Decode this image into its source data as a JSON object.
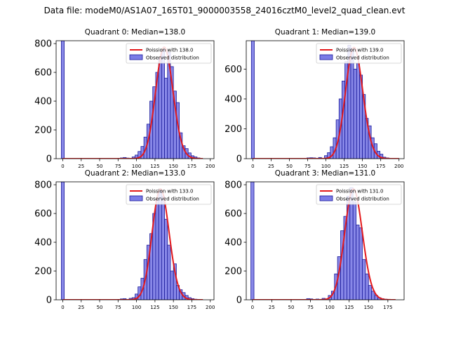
{
  "figure": {
    "suptitle": "Data file: modeM0/AS1A07_165T01_9000003558_24016cztM0_level2_quad_clean.evt"
  },
  "colors": {
    "bar_fill": "#7b7be6",
    "bar_edge": "#1a1a9a",
    "poisson_line": "#e41a1c",
    "axes": "#000000"
  },
  "chart_data": [
    {
      "type": "bar",
      "title": "Quadrant 0: Median=138.0",
      "xlim": [
        -9,
        205
      ],
      "ylim": [
        0,
        820
      ],
      "xticks": [
        0,
        25,
        50,
        75,
        100,
        125,
        150,
        175,
        200
      ],
      "yticks": [
        0,
        200,
        400,
        600,
        800
      ],
      "bin_width": 4,
      "bins": [
        {
          "x": 0,
          "v": 820
        },
        {
          "x": 80,
          "v": 5
        },
        {
          "x": 84,
          "v": 8
        },
        {
          "x": 88,
          "v": 4
        },
        {
          "x": 96,
          "v": 12
        },
        {
          "x": 100,
          "v": 25
        },
        {
          "x": 104,
          "v": 50
        },
        {
          "x": 108,
          "v": 85
        },
        {
          "x": 112,
          "v": 150
        },
        {
          "x": 116,
          "v": 240
        },
        {
          "x": 120,
          "v": 400
        },
        {
          "x": 124,
          "v": 500
        },
        {
          "x": 128,
          "v": 600
        },
        {
          "x": 132,
          "v": 700
        },
        {
          "x": 136,
          "v": 760
        },
        {
          "x": 140,
          "v": 560
        },
        {
          "x": 144,
          "v": 740
        },
        {
          "x": 148,
          "v": 640
        },
        {
          "x": 152,
          "v": 470
        },
        {
          "x": 156,
          "v": 390
        },
        {
          "x": 160,
          "v": 180
        },
        {
          "x": 164,
          "v": 90
        },
        {
          "x": 168,
          "v": 70
        },
        {
          "x": 172,
          "v": 40
        },
        {
          "x": 176,
          "v": 20
        },
        {
          "x": 180,
          "v": 12
        },
        {
          "x": 184,
          "v": 5
        }
      ],
      "poisson_mean": 138.0,
      "poisson_scale": 775,
      "poisson_range": [
        0,
        190
      ],
      "legend": {
        "poisson": "Poission with 138.0",
        "observed": "Observed distribution",
        "loc": "upper right"
      }
    },
    {
      "type": "bar",
      "title": "Quadrant 1: Median=139.0",
      "xlim": [
        -9,
        207
      ],
      "ylim": [
        0,
        790
      ],
      "xticks": [
        0,
        25,
        50,
        75,
        100,
        125,
        150,
        175,
        200
      ],
      "yticks": [
        0,
        200,
        400,
        600
      ],
      "bin_width": 4,
      "bins": [
        {
          "x": 0,
          "v": 790
        },
        {
          "x": 76,
          "v": 5
        },
        {
          "x": 80,
          "v": 6
        },
        {
          "x": 84,
          "v": 5
        },
        {
          "x": 92,
          "v": 8
        },
        {
          "x": 100,
          "v": 20
        },
        {
          "x": 104,
          "v": 40
        },
        {
          "x": 108,
          "v": 80
        },
        {
          "x": 112,
          "v": 140
        },
        {
          "x": 116,
          "v": 260
        },
        {
          "x": 120,
          "v": 400
        },
        {
          "x": 124,
          "v": 520
        },
        {
          "x": 128,
          "v": 650
        },
        {
          "x": 132,
          "v": 760
        },
        {
          "x": 136,
          "v": 740
        },
        {
          "x": 140,
          "v": 600
        },
        {
          "x": 144,
          "v": 640
        },
        {
          "x": 148,
          "v": 560
        },
        {
          "x": 152,
          "v": 430
        },
        {
          "x": 156,
          "v": 270
        },
        {
          "x": 160,
          "v": 220
        },
        {
          "x": 164,
          "v": 140
        },
        {
          "x": 168,
          "v": 100
        },
        {
          "x": 172,
          "v": 50
        },
        {
          "x": 176,
          "v": 30
        },
        {
          "x": 180,
          "v": 10
        },
        {
          "x": 184,
          "v": 5
        }
      ],
      "poisson_mean": 139.0,
      "poisson_scale": 745,
      "poisson_range": [
        0,
        200
      ],
      "legend": {
        "poisson": "Poission with 139.0",
        "observed": "Observed distribution",
        "loc": "upper right"
      }
    },
    {
      "type": "bar",
      "title": "Quadrant 2: Median=133.0",
      "xlim": [
        -9,
        205
      ],
      "ylim": [
        0,
        820
      ],
      "xticks": [
        0,
        25,
        50,
        75,
        100,
        125,
        150,
        175,
        200
      ],
      "yticks": [
        0,
        200,
        400,
        600,
        800
      ],
      "bin_width": 4,
      "bins": [
        {
          "x": 0,
          "v": 820
        },
        {
          "x": 80,
          "v": 6
        },
        {
          "x": 84,
          "v": 8
        },
        {
          "x": 92,
          "v": 10
        },
        {
          "x": 96,
          "v": 15
        },
        {
          "x": 100,
          "v": 40
        },
        {
          "x": 104,
          "v": 90
        },
        {
          "x": 108,
          "v": 150
        },
        {
          "x": 112,
          "v": 280
        },
        {
          "x": 116,
          "v": 380
        },
        {
          "x": 120,
          "v": 460
        },
        {
          "x": 124,
          "v": 600
        },
        {
          "x": 128,
          "v": 700
        },
        {
          "x": 132,
          "v": 760
        },
        {
          "x": 136,
          "v": 720
        },
        {
          "x": 140,
          "v": 560
        },
        {
          "x": 144,
          "v": 380
        },
        {
          "x": 148,
          "v": 200
        },
        {
          "x": 152,
          "v": 250
        },
        {
          "x": 156,
          "v": 100
        },
        {
          "x": 160,
          "v": 70
        },
        {
          "x": 164,
          "v": 50
        },
        {
          "x": 168,
          "v": 30
        },
        {
          "x": 172,
          "v": 15
        },
        {
          "x": 176,
          "v": 8
        },
        {
          "x": 180,
          "v": 4
        },
        {
          "x": 184,
          "v": 3
        }
      ],
      "poisson_mean": 133.0,
      "poisson_scale": 770,
      "poisson_range": [
        0,
        190
      ],
      "legend": {
        "poisson": "Poission with 133.0",
        "observed": "Observed distribution",
        "loc": "upper right"
      }
    },
    {
      "type": "bar",
      "title": "Quadrant 3: Median=131.0",
      "xlim": [
        -8,
        196
      ],
      "ylim": [
        0,
        820
      ],
      "xticks": [
        0,
        25,
        50,
        75,
        100,
        125,
        150,
        175
      ],
      "yticks": [
        0,
        200,
        400,
        600,
        800
      ],
      "bin_width": 4,
      "bins": [
        {
          "x": 0,
          "v": 820
        },
        {
          "x": 72,
          "v": 8
        },
        {
          "x": 76,
          "v": 6
        },
        {
          "x": 84,
          "v": 5
        },
        {
          "x": 92,
          "v": 10
        },
        {
          "x": 100,
          "v": 30
        },
        {
          "x": 104,
          "v": 60
        },
        {
          "x": 108,
          "v": 180
        },
        {
          "x": 112,
          "v": 300
        },
        {
          "x": 116,
          "v": 480
        },
        {
          "x": 120,
          "v": 580
        },
        {
          "x": 124,
          "v": 720
        },
        {
          "x": 128,
          "v": 780
        },
        {
          "x": 132,
          "v": 680
        },
        {
          "x": 136,
          "v": 520
        },
        {
          "x": 140,
          "v": 500
        },
        {
          "x": 144,
          "v": 280
        },
        {
          "x": 148,
          "v": 180
        },
        {
          "x": 152,
          "v": 100
        },
        {
          "x": 156,
          "v": 60
        },
        {
          "x": 160,
          "v": 30
        },
        {
          "x": 164,
          "v": 15
        },
        {
          "x": 168,
          "v": 8
        },
        {
          "x": 172,
          "v": 4
        }
      ],
      "poisson_mean": 131.0,
      "poisson_scale": 770,
      "poisson_range": [
        0,
        185
      ],
      "legend": {
        "poisson": "Poission with 131.0",
        "observed": "Observed distribution",
        "loc": "upper right"
      }
    }
  ]
}
